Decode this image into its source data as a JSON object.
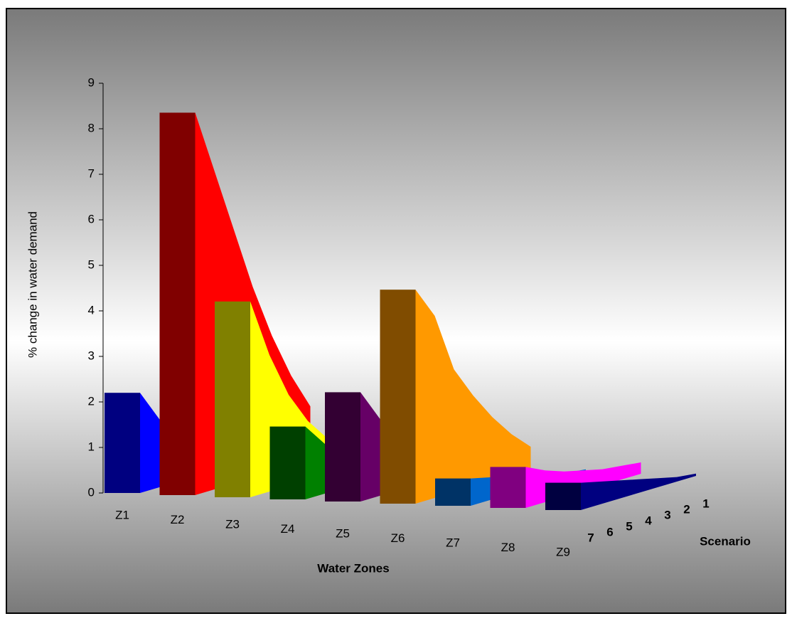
{
  "chart_data": {
    "type": "area3d",
    "y_label": "% change in water demand",
    "x_label": "Water Zones",
    "depth_label": "Scenario",
    "categories": [
      "7",
      "6",
      "5",
      "4",
      "3",
      "2",
      "1"
    ],
    "ylim": [
      0,
      9
    ],
    "yticks": [
      0,
      1,
      2,
      3,
      4,
      5,
      6,
      7,
      8,
      9
    ],
    "series": [
      {
        "name": "Z1",
        "color": "#0000ff",
        "face_color": "#000080",
        "values": [
          2.2,
          1.5,
          1.0,
          0.6,
          0.3,
          0.15,
          0.05
        ]
      },
      {
        "name": "Z2",
        "color": "#ff0000",
        "face_color": "#800000",
        "values": [
          8.4,
          7.0,
          5.6,
          4.2,
          3.0,
          2.0,
          1.2
        ]
      },
      {
        "name": "Z3",
        "color": "#ffff00",
        "face_color": "#808000",
        "values": [
          4.3,
          3.0,
          2.0,
          1.3,
          0.8,
          0.4,
          0.2
        ]
      },
      {
        "name": "Z4",
        "color": "#008000",
        "face_color": "#004000",
        "values": [
          1.6,
          1.1,
          0.7,
          0.4,
          0.2,
          0.1,
          0.05
        ]
      },
      {
        "name": "Z5",
        "color": "#660066",
        "face_color": "#330033",
        "values": [
          2.4,
          1.7,
          1.1,
          0.7,
          0.4,
          0.2,
          0.1
        ]
      },
      {
        "name": "Z6",
        "color": "#ff9900",
        "face_color": "#804c00",
        "values": [
          4.7,
          4.0,
          2.7,
          2.0,
          1.4,
          0.9,
          0.5
        ]
      },
      {
        "name": "Z7",
        "color": "#0066cc",
        "face_color": "#003366",
        "values": [
          0.6,
          0.5,
          0.4,
          0.3,
          0.2,
          0.1,
          0.05
        ]
      },
      {
        "name": "Z8",
        "color": "#ff00ff",
        "face_color": "#800080",
        "values": [
          0.9,
          0.7,
          0.55,
          0.45,
          0.35,
          0.3,
          0.25
        ]
      },
      {
        "name": "Z9",
        "color": "#000080",
        "face_color": "#000040",
        "values": [
          0.6,
          0.5,
          0.4,
          0.3,
          0.2,
          0.1,
          0.05
        ]
      }
    ]
  }
}
